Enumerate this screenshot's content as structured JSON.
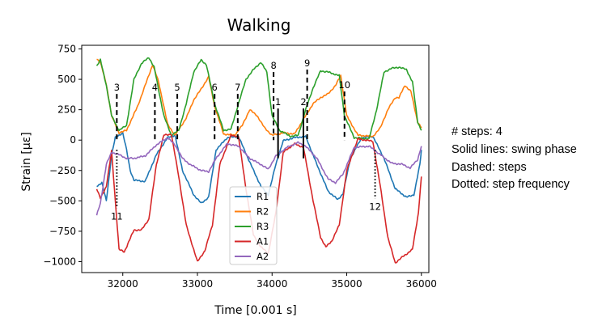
{
  "chart_data": {
    "type": "line",
    "title": "Walking",
    "xlabel": "Time [0.001 s]",
    "ylabel": "Strain [με]",
    "xlim": [
      31450,
      36100
    ],
    "ylim": [
      -1090,
      780
    ],
    "xticks": [
      32000,
      33000,
      34000,
      35000,
      36000
    ],
    "yticks": [
      750,
      500,
      250,
      0,
      -250,
      -500,
      -750,
      -1000
    ],
    "grid": false,
    "legend_position": "lower-center",
    "series": [
      {
        "name": "R1",
        "color": "#1f77b4",
        "points": [
          [
            31650,
            -380
          ],
          [
            31720,
            -350
          ],
          [
            31780,
            -500
          ],
          [
            31850,
            -120
          ],
          [
            31900,
            20
          ],
          [
            32000,
            60
          ],
          [
            32050,
            -80
          ],
          [
            32100,
            -250
          ],
          [
            32150,
            -330
          ],
          [
            32300,
            -340
          ],
          [
            32450,
            -120
          ],
          [
            32600,
            20
          ],
          [
            32700,
            40
          ],
          [
            32800,
            -250
          ],
          [
            32950,
            -450
          ],
          [
            33050,
            -520
          ],
          [
            33150,
            -470
          ],
          [
            33250,
            -80
          ],
          [
            33400,
            20
          ],
          [
            33550,
            30
          ],
          [
            33700,
            -180
          ],
          [
            33850,
            -380
          ],
          [
            33950,
            -450
          ],
          [
            34050,
            -200
          ],
          [
            34150,
            -5
          ],
          [
            34300,
            20
          ],
          [
            34450,
            30
          ],
          [
            34600,
            -200
          ],
          [
            34750,
            -420
          ],
          [
            34880,
            -490
          ],
          [
            34950,
            -440
          ],
          [
            35050,
            -150
          ],
          [
            35200,
            20
          ],
          [
            35350,
            30
          ],
          [
            35500,
            -150
          ],
          [
            35650,
            -400
          ],
          [
            35800,
            -470
          ],
          [
            35900,
            -450
          ],
          [
            35980,
            -200
          ],
          [
            36000,
            -80
          ]
        ]
      },
      {
        "name": "R2",
        "color": "#ff7f0e",
        "points": [
          [
            31650,
            670
          ],
          [
            31700,
            640
          ],
          [
            31780,
            460
          ],
          [
            31850,
            200
          ],
          [
            31950,
            60
          ],
          [
            32050,
            80
          ],
          [
            32200,
            280
          ],
          [
            32300,
            450
          ],
          [
            32400,
            620
          ],
          [
            32480,
            480
          ],
          [
            32600,
            130
          ],
          [
            32700,
            40
          ],
          [
            32850,
            180
          ],
          [
            32950,
            330
          ],
          [
            33050,
            420
          ],
          [
            33150,
            520
          ],
          [
            33230,
            280
          ],
          [
            33350,
            50
          ],
          [
            33500,
            40
          ],
          [
            33600,
            120
          ],
          [
            33700,
            250
          ],
          [
            33800,
            200
          ],
          [
            33900,
            100
          ],
          [
            34000,
            40
          ],
          [
            34150,
            60
          ],
          [
            34300,
            50
          ],
          [
            34450,
            200
          ],
          [
            34550,
            300
          ],
          [
            34650,
            350
          ],
          [
            34750,
            380
          ],
          [
            34850,
            450
          ],
          [
            34920,
            530
          ],
          [
            35000,
            200
          ],
          [
            35150,
            40
          ],
          [
            35350,
            30
          ],
          [
            35450,
            100
          ],
          [
            35550,
            250
          ],
          [
            35650,
            350
          ],
          [
            35700,
            350
          ],
          [
            35780,
            450
          ],
          [
            35860,
            400
          ],
          [
            35950,
            150
          ],
          [
            36000,
            100
          ]
        ]
      },
      {
        "name": "R3",
        "color": "#2ca02c",
        "points": [
          [
            31650,
            610
          ],
          [
            31700,
            660
          ],
          [
            31780,
            450
          ],
          [
            31850,
            200
          ],
          [
            31950,
            80
          ],
          [
            32050,
            120
          ],
          [
            32150,
            500
          ],
          [
            32250,
            630
          ],
          [
            32350,
            680
          ],
          [
            32420,
            600
          ],
          [
            32550,
            200
          ],
          [
            32650,
            40
          ],
          [
            32750,
            80
          ],
          [
            32850,
            300
          ],
          [
            32950,
            560
          ],
          [
            33050,
            660
          ],
          [
            33120,
            620
          ],
          [
            33230,
            300
          ],
          [
            33350,
            80
          ],
          [
            33450,
            90
          ],
          [
            33550,
            300
          ],
          [
            33650,
            500
          ],
          [
            33750,
            580
          ],
          [
            33850,
            640
          ],
          [
            33930,
            560
          ],
          [
            34000,
            200
          ],
          [
            34100,
            80
          ],
          [
            34250,
            30
          ],
          [
            34350,
            40
          ],
          [
            34450,
            250
          ],
          [
            34550,
            430
          ],
          [
            34650,
            570
          ],
          [
            34750,
            560
          ],
          [
            34900,
            530
          ],
          [
            34970,
            200
          ],
          [
            35100,
            20
          ],
          [
            35300,
            10
          ],
          [
            35400,
            250
          ],
          [
            35500,
            560
          ],
          [
            35600,
            590
          ],
          [
            35700,
            600
          ],
          [
            35800,
            580
          ],
          [
            35880,
            480
          ],
          [
            35950,
            150
          ],
          [
            36000,
            80
          ]
        ]
      },
      {
        "name": "A1",
        "color": "#d62728",
        "points": [
          [
            31650,
            -400
          ],
          [
            31700,
            -480
          ],
          [
            31780,
            -380
          ],
          [
            31850,
            -90
          ],
          [
            31900,
            -500
          ],
          [
            31950,
            -900
          ],
          [
            32020,
            -920
          ],
          [
            32150,
            -740
          ],
          [
            32250,
            -740
          ],
          [
            32350,
            -650
          ],
          [
            32450,
            -200
          ],
          [
            32550,
            40
          ],
          [
            32650,
            50
          ],
          [
            32750,
            -300
          ],
          [
            32850,
            -700
          ],
          [
            32950,
            -900
          ],
          [
            33000,
            -1000
          ],
          [
            33100,
            -910
          ],
          [
            33200,
            -700
          ],
          [
            33300,
            -200
          ],
          [
            33450,
            40
          ],
          [
            33550,
            30
          ],
          [
            33650,
            -400
          ],
          [
            33750,
            -780
          ],
          [
            33850,
            -880
          ],
          [
            33950,
            -930
          ],
          [
            34050,
            -600
          ],
          [
            34150,
            -100
          ],
          [
            34300,
            -30
          ],
          [
            34420,
            -60
          ],
          [
            34550,
            -500
          ],
          [
            34650,
            -800
          ],
          [
            34720,
            -880
          ],
          [
            34800,
            -830
          ],
          [
            34900,
            -700
          ],
          [
            35000,
            -250
          ],
          [
            35150,
            10
          ],
          [
            35350,
            -10
          ],
          [
            35450,
            -380
          ],
          [
            35550,
            -800
          ],
          [
            35650,
            -1010
          ],
          [
            35750,
            -960
          ],
          [
            35880,
            -900
          ],
          [
            35960,
            -600
          ],
          [
            36000,
            -300
          ]
        ]
      },
      {
        "name": "A2",
        "color": "#9467bd",
        "points": [
          [
            31650,
            -620
          ],
          [
            31700,
            -520
          ],
          [
            31780,
            -200
          ],
          [
            31850,
            -100
          ],
          [
            31950,
            -120
          ],
          [
            32050,
            -150
          ],
          [
            32150,
            -150
          ],
          [
            32300,
            -130
          ],
          [
            32450,
            -40
          ],
          [
            32600,
            20
          ],
          [
            32700,
            -40
          ],
          [
            32800,
            -150
          ],
          [
            32900,
            -200
          ],
          [
            33050,
            -250
          ],
          [
            33150,
            -260
          ],
          [
            33250,
            -150
          ],
          [
            33400,
            -30
          ],
          [
            33550,
            -50
          ],
          [
            33700,
            -150
          ],
          [
            33850,
            -200
          ],
          [
            33950,
            -240
          ],
          [
            34050,
            -130
          ],
          [
            34200,
            -60
          ],
          [
            34350,
            -20
          ],
          [
            34450,
            -50
          ],
          [
            34600,
            -150
          ],
          [
            34750,
            -320
          ],
          [
            34850,
            -350
          ],
          [
            34950,
            -280
          ],
          [
            35100,
            -60
          ],
          [
            35300,
            -50
          ],
          [
            35450,
            -120
          ],
          [
            35600,
            -190
          ],
          [
            35750,
            -200
          ],
          [
            35850,
            -230
          ],
          [
            35950,
            -160
          ],
          [
            36000,
            -50
          ]
        ]
      }
    ],
    "annotations": [
      {
        "label": "3",
        "x": 31920,
        "style": "dashed",
        "y_range": [
          0,
          380
        ],
        "label_pos": "top"
      },
      {
        "label": "4",
        "x": 32430,
        "style": "dashed",
        "y_range": [
          0,
          380
        ],
        "label_pos": "top"
      },
      {
        "label": "5",
        "x": 32730,
        "style": "dashed",
        "y_range": [
          0,
          380
        ],
        "label_pos": "top"
      },
      {
        "label": "6",
        "x": 33230,
        "style": "dashed",
        "y_range": [
          0,
          380
        ],
        "label_pos": "top"
      },
      {
        "label": "7",
        "x": 33540,
        "style": "dashed",
        "y_range": [
          0,
          380
        ],
        "label_pos": "top"
      },
      {
        "label": "8",
        "x": 34020,
        "style": "dashed",
        "y_range": [
          0,
          560
        ],
        "label_pos": "top"
      },
      {
        "label": "9",
        "x": 34470,
        "style": "dashed",
        "y_range": [
          0,
          580
        ],
        "label_pos": "top"
      },
      {
        "label": "10",
        "x": 34970,
        "style": "dashed",
        "y_range": [
          0,
          400
        ],
        "label_pos": "top"
      },
      {
        "label": "1",
        "x": 34080,
        "style": "solid",
        "y_range": [
          -150,
          260
        ],
        "label_pos": "top"
      },
      {
        "label": "2",
        "x": 34420,
        "style": "solid",
        "y_range": [
          -150,
          260
        ],
        "label_pos": "top"
      },
      {
        "label": "11",
        "x": 31920,
        "style": "dotted",
        "y_range": [
          -560,
          -80
        ],
        "label_pos": "bottom"
      },
      {
        "label": "12",
        "x": 35380,
        "style": "dotted",
        "y_range": [
          -480,
          -80
        ],
        "label_pos": "bottom"
      }
    ]
  },
  "side_notes": {
    "steps": "# steps: 4",
    "solid": "Solid lines: swing phase",
    "dashed": "Dashed: steps",
    "dotted": "Dotted: step frequency"
  }
}
